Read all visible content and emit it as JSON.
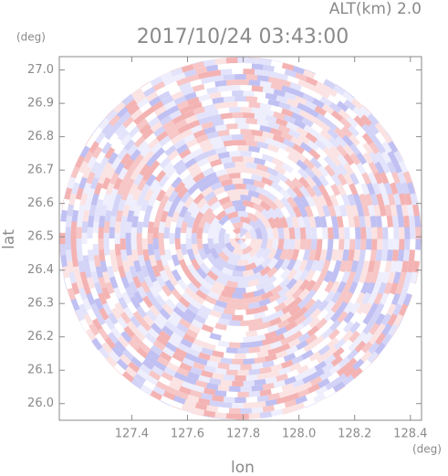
{
  "chart_data": {
    "type": "radar-ppi",
    "title": "2017/10/24 03:43:00",
    "altitude_label": "ALT(km) 2.0",
    "x_label": "lon",
    "y_label": "lat",
    "x_unit": "(deg)",
    "y_unit": "(deg)",
    "xlim": [
      127.14,
      128.44
    ],
    "ylim": [
      25.95,
      27.04
    ],
    "xticks": [
      127.4,
      127.6,
      127.8,
      {
        "value": 128.0,
        "label": "128.0"
      },
      128.2,
      128.4
    ],
    "yticks": [
      {
        "value": 26.0,
        "label": "26.0"
      },
      26.1,
      26.2,
      26.3,
      26.4,
      26.5,
      26.6,
      26.7,
      26.8,
      26.9,
      {
        "value": 27.0,
        "label": "27.0"
      }
    ]
  }
}
